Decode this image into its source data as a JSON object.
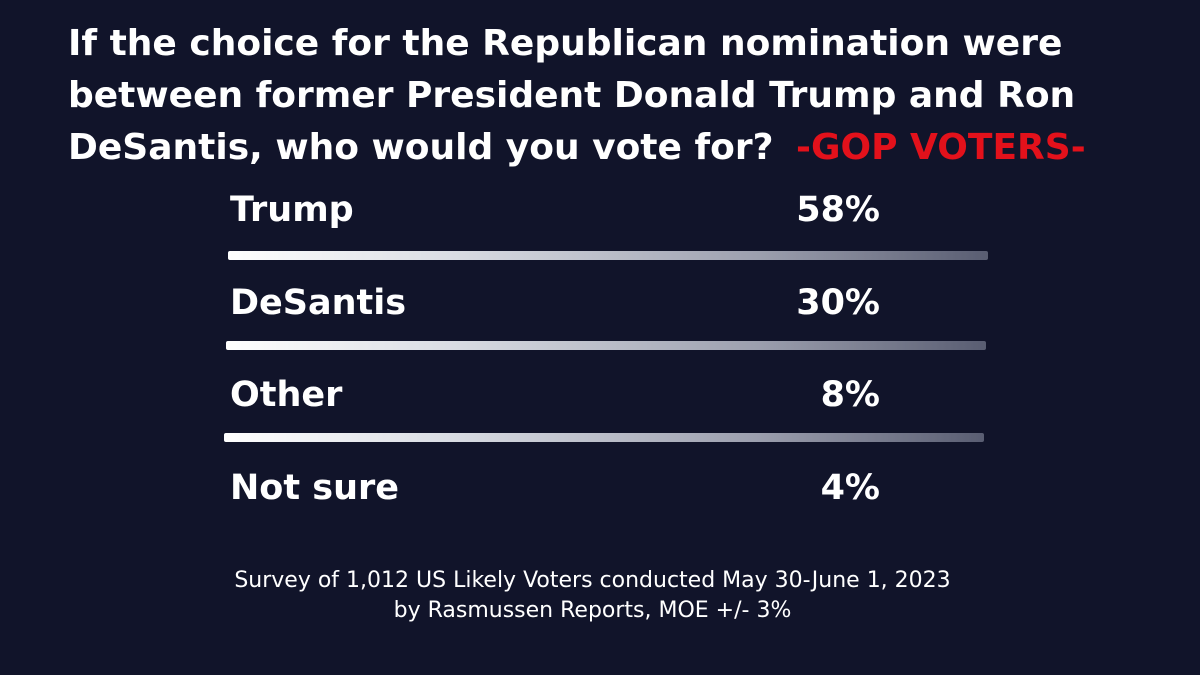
{
  "title": {
    "main": "If the choice for the Republican nomination were between former President Donald Trump and Ron DeSantis, who would you vote for?",
    "highlight": "-GOP VOTERS-"
  },
  "chart_data": {
    "type": "table",
    "title": "If the choice for the Republican nomination were between former President Donald Trump and Ron DeSantis, who would you vote for? -GOP VOTERS-",
    "categories": [
      "Trump",
      "DeSantis",
      "Other",
      "Not sure"
    ],
    "values": [
      58,
      30,
      8,
      4
    ],
    "value_labels": [
      "58%",
      "30%",
      "8%",
      "4%"
    ],
    "rows": [
      {
        "label": "Trump",
        "value": "58%"
      },
      {
        "label": "DeSantis",
        "value": "30%"
      },
      {
        "label": "Other",
        "value": "8%"
      },
      {
        "label": "Not sure",
        "value": "4%"
      }
    ]
  },
  "footnote": {
    "line1": "Survey of 1,012 US Likely Voters conducted May 30-June 1, 2023",
    "line2": "by Rasmussen Reports, MOE +/- 3%"
  },
  "colors": {
    "background": "#11142a",
    "text": "#ffffff",
    "highlight": "#e3111b"
  }
}
